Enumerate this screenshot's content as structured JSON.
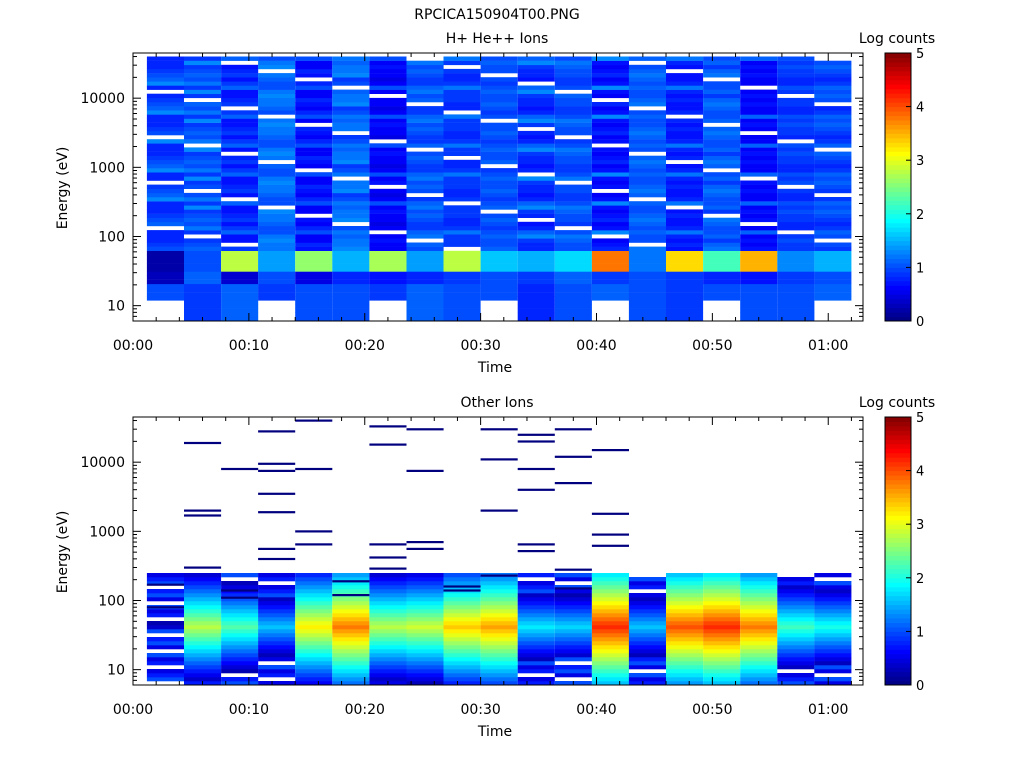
{
  "figure_title": "RPCICA150904T00.PNG",
  "colors": {
    "colormap": [
      "#00007f",
      "#0000ff",
      "#007fff",
      "#00ffff",
      "#7fff7f",
      "#ffff00",
      "#ff7f00",
      "#ff0000",
      "#7f0000"
    ],
    "axes": "#000000",
    "background": "#ffffff"
  },
  "chart_data": [
    {
      "type": "heatmap",
      "title": "H+ He++ Ions",
      "xlabel": "Time",
      "ylabel": "Energy (eV)",
      "xlim_minutes": [
        0,
        63
      ],
      "ylim": [
        6,
        45000
      ],
      "y_scale": "log",
      "xticks": [
        0,
        10,
        20,
        30,
        40,
        50,
        60
      ],
      "xtick_labels": [
        "00:00",
        "00:10",
        "00:20",
        "00:30",
        "00:40",
        "00:50",
        "01:00"
      ],
      "yticks": [
        10,
        100,
        1000,
        10000
      ],
      "ytick_labels": [
        "10",
        "100",
        "1000",
        "10000"
      ],
      "colorbar": {
        "label": "Log counts",
        "range": [
          0,
          5
        ],
        "ticks": [
          "0",
          "1",
          "2",
          "3",
          "4",
          "5"
        ]
      },
      "time_columns_minutes": [
        2.8,
        6.0,
        9.2,
        12.4,
        15.6,
        18.8,
        22.0,
        25.2,
        28.4,
        31.6,
        34.8,
        38.0,
        41.2,
        44.4,
        47.6,
        50.8,
        54.0,
        57.2,
        60.4
      ],
      "energy_range_eV": [
        6,
        40000
      ],
      "log_count_profile": [
        [
          1.0,
          0.3,
          0.2,
          0.8,
          1.3,
          1.1,
          1.0,
          0.9,
          0.8,
          0.8
        ],
        [
          0.9,
          1.1,
          1.0,
          0.9,
          1.2,
          1.0,
          1.1,
          1.0,
          0.9,
          1.3
        ],
        [
          1.1,
          0.4,
          2.8,
          1.1,
          0.9,
          0.7,
          0.9,
          0.8,
          0.7,
          0.7
        ],
        [
          0.9,
          1.0,
          1.4,
          1.0,
          1.0,
          1.1,
          1.2,
          1.2,
          1.3,
          1.2
        ],
        [
          1.0,
          0.5,
          2.6,
          1.0,
          0.8,
          0.6,
          0.7,
          0.8,
          0.6,
          0.6
        ],
        [
          1.0,
          0.8,
          1.5,
          1.2,
          1.0,
          0.9,
          1.3,
          1.2,
          1.2,
          1.1
        ],
        [
          0.9,
          0.7,
          2.7,
          1.0,
          0.6,
          0.5,
          0.6,
          0.6,
          0.7,
          0.6
        ],
        [
          1.1,
          0.8,
          1.4,
          1.1,
          0.9,
          0.9,
          1.0,
          1.1,
          1.0,
          1.2
        ],
        [
          1.0,
          0.9,
          2.8,
          1.2,
          0.9,
          0.8,
          0.8,
          0.9,
          0.9,
          0.9
        ],
        [
          1.0,
          1.0,
          1.6,
          1.0,
          0.9,
          1.0,
          1.1,
          1.0,
          1.0,
          1.1
        ],
        [
          0.8,
          0.9,
          1.5,
          1.1,
          0.8,
          0.7,
          0.8,
          0.8,
          0.9,
          1.3
        ],
        [
          1.0,
          1.1,
          1.7,
          1.0,
          0.9,
          0.9,
          1.0,
          1.0,
          1.1,
          1.2
        ],
        [
          1.1,
          0.9,
          3.8,
          1.3,
          0.7,
          0.6,
          0.8,
          0.7,
          0.6,
          0.7
        ],
        [
          1.0,
          1.0,
          1.2,
          1.1,
          1.0,
          1.1,
          1.2,
          1.1,
          1.0,
          1.0
        ],
        [
          0.9,
          0.9,
          3.3,
          1.2,
          0.8,
          0.7,
          0.7,
          0.8,
          0.7,
          0.8
        ],
        [
          1.0,
          0.8,
          2.2,
          1.0,
          1.0,
          1.1,
          1.2,
          1.1,
          0.9,
          1.1
        ],
        [
          1.0,
          0.7,
          3.5,
          1.1,
          0.6,
          0.6,
          0.7,
          0.6,
          0.7,
          0.6
        ],
        [
          1.0,
          0.9,
          1.3,
          1.0,
          0.8,
          0.8,
          0.9,
          0.9,
          1.0,
          0.9
        ],
        [
          1.1,
          1.0,
          1.5,
          1.1,
          0.9,
          0.8,
          0.9,
          1.0,
          1.1,
          1.0
        ]
      ]
    },
    {
      "type": "heatmap",
      "title": "Other Ions",
      "xlabel": "Time",
      "ylabel": "Energy (eV)",
      "xlim_minutes": [
        0,
        63
      ],
      "ylim": [
        6,
        45000
      ],
      "y_scale": "log",
      "xticks": [
        0,
        10,
        20,
        30,
        40,
        50,
        60
      ],
      "xtick_labels": [
        "00:00",
        "00:10",
        "00:20",
        "00:30",
        "00:40",
        "00:50",
        "01:00"
      ],
      "yticks": [
        10,
        100,
        1000,
        10000
      ],
      "ytick_labels": [
        "10",
        "100",
        "1000",
        "10000"
      ],
      "colorbar": {
        "label": "Log counts",
        "range": [
          0,
          5
        ],
        "ticks": [
          "0",
          "1",
          "2",
          "3",
          "4",
          "5"
        ]
      },
      "time_columns_minutes": [
        2.8,
        6.0,
        9.2,
        12.4,
        15.6,
        18.8,
        22.0,
        25.2,
        28.4,
        31.6,
        34.8,
        38.0,
        41.2,
        44.4,
        47.6,
        50.8,
        54.0,
        57.2,
        60.4
      ],
      "peak_log_counts": [
        0.4,
        2.8,
        2.3,
        1.6,
        3.2,
        3.8,
        2.8,
        2.9,
        3.4,
        3.6,
        1.8,
        1.7,
        4.2,
        1.6,
        4.0,
        4.2,
        3.8,
        2.2,
        2.0
      ],
      "sparse_high_energy_lines_eV": [
        [
          170,
          80
        ],
        [
          19000,
          2000,
          1700,
          300
        ],
        [
          8000,
          140,
          110
        ],
        [
          28000,
          9500,
          7500,
          3500,
          1900,
          560,
          400
        ],
        [
          40000,
          8000,
          1000,
          650
        ],
        [
          190,
          120
        ],
        [
          33000,
          18000,
          650,
          420,
          290
        ],
        [
          30000,
          7500,
          700,
          560
        ],
        [
          160,
          140
        ],
        [
          30000,
          11000,
          2000,
          230
        ],
        [
          25000,
          20000,
          8000,
          4000,
          650,
          520
        ],
        [
          30000,
          12000,
          5000,
          280,
          150
        ],
        [
          15000,
          1800,
          900,
          620
        ]
      ]
    }
  ]
}
